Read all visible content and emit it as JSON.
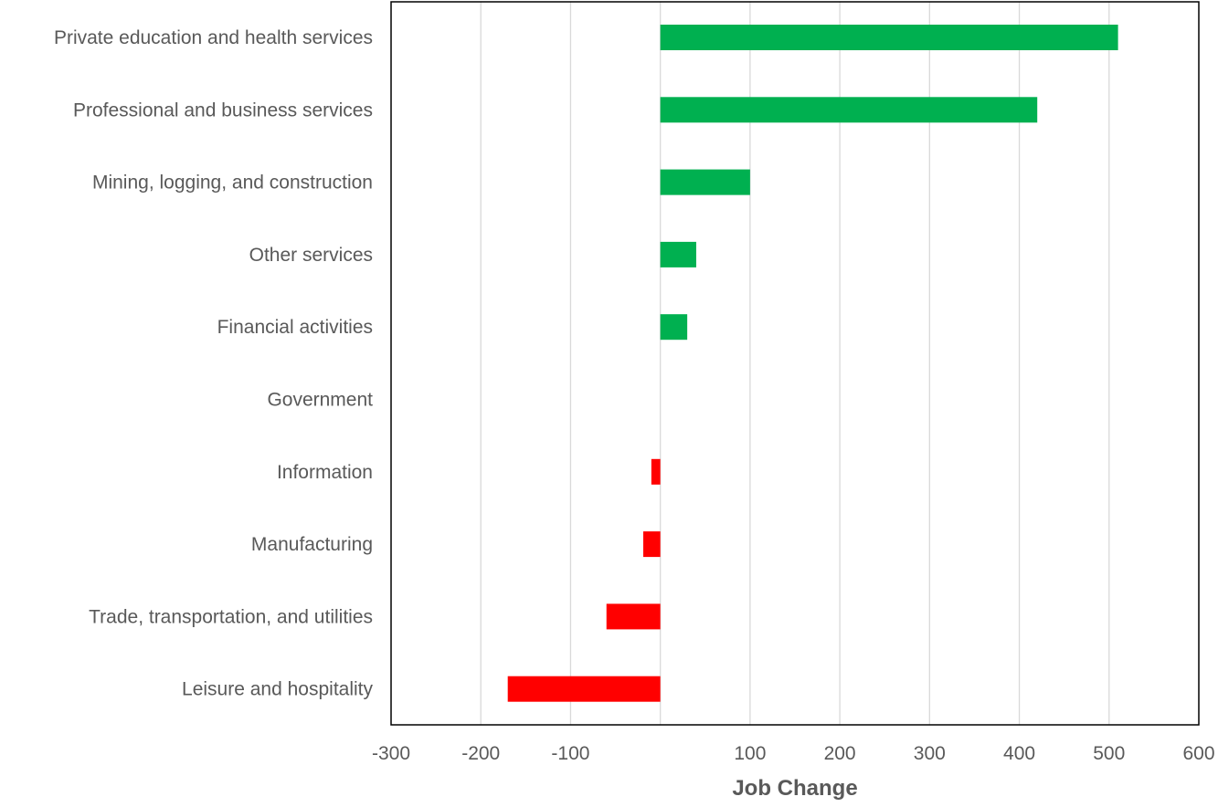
{
  "chart_data": {
    "type": "bar",
    "orientation": "horizontal",
    "title": "",
    "xlabel": "Job Change",
    "ylabel": "",
    "xlim": [
      -300,
      600
    ],
    "x_ticks": [
      -300,
      -200,
      -100,
      100,
      200,
      300,
      400,
      500,
      600
    ],
    "x_tick_labels": [
      "-300",
      "-200",
      "-100",
      "100",
      "200",
      "300",
      "400",
      "500",
      "600"
    ],
    "grid": true,
    "legend": "none",
    "categories": [
      "Private education and health services",
      "Professional and business services",
      "Mining, logging, and construction",
      "Other services",
      "Financial activities",
      "Government",
      "Information",
      "Manufacturing",
      "Trade, transportation, and utilities",
      "Leisure and hospitality"
    ],
    "values": [
      510,
      420,
      100,
      40,
      30,
      0,
      -10,
      -19,
      -60,
      -170
    ],
    "colors": {
      "positive": "#00b050",
      "negative": "#ff0000",
      "gridline": "#d9d9d9",
      "border": "#000000",
      "text": "#595959"
    }
  }
}
